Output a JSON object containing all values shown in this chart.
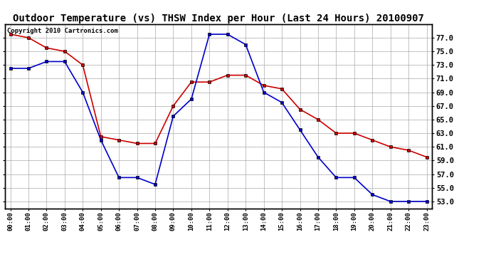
{
  "title": "Outdoor Temperature (vs) THSW Index per Hour (Last 24 Hours) 20100907",
  "copyright_text": "Copyright 2010 Cartronics.com",
  "hours": [
    0,
    1,
    2,
    3,
    4,
    5,
    6,
    7,
    8,
    9,
    10,
    11,
    12,
    13,
    14,
    15,
    16,
    17,
    18,
    19,
    20,
    21,
    22,
    23
  ],
  "hour_labels": [
    "00:00",
    "01:00",
    "02:00",
    "03:00",
    "04:00",
    "05:00",
    "06:00",
    "07:00",
    "08:00",
    "09:00",
    "10:00",
    "11:00",
    "12:00",
    "13:00",
    "14:00",
    "15:00",
    "16:00",
    "17:00",
    "18:00",
    "19:00",
    "20:00",
    "21:00",
    "22:00",
    "23:00"
  ],
  "blue_temp": [
    72.5,
    72.5,
    73.5,
    73.5,
    69.0,
    62.0,
    56.5,
    56.5,
    55.5,
    65.5,
    68.0,
    77.5,
    77.5,
    76.0,
    69.0,
    67.5,
    63.5,
    59.5,
    56.5,
    56.5,
    54.0,
    53.0,
    53.0,
    53.0
  ],
  "red_thsw": [
    77.5,
    77.0,
    75.5,
    75.0,
    73.0,
    62.5,
    62.0,
    61.5,
    61.5,
    67.0,
    70.5,
    70.5,
    71.5,
    71.5,
    70.0,
    69.5,
    66.5,
    65.0,
    63.0,
    63.0,
    62.0,
    61.0,
    60.5,
    59.5
  ],
  "ylim": [
    52.0,
    79.0
  ],
  "yticks": [
    53.0,
    55.0,
    57.0,
    59.0,
    61.0,
    63.0,
    65.0,
    67.0,
    69.0,
    71.0,
    73.0,
    75.0,
    77.0
  ],
  "blue_color": "#0000cc",
  "red_color": "#cc0000",
  "bg_color": "#ffffff",
  "grid_color": "#aaaaaa",
  "title_fontsize": 10,
  "copyright_fontsize": 6.5
}
